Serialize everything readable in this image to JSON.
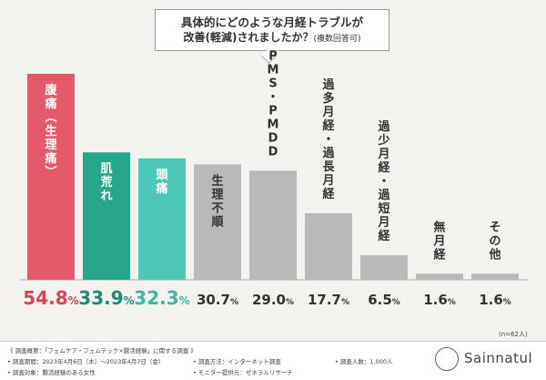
{
  "title": {
    "line1": "具体的にどのような月経トラブルが",
    "line2_main": "改善(軽減)されましたか？",
    "line2_sub": "(複数回答可)"
  },
  "chart_data": {
    "type": "bar",
    "categories": [
      "腹痛(生理痛)",
      "肌荒れ",
      "頭痛",
      "生理不順",
      "PMS・PMDD",
      "過多月経・過長月経",
      "過少月経・過短月経",
      "無月経",
      "その他"
    ],
    "values": [
      54.8,
      33.9,
      32.3,
      30.7,
      29.0,
      17.7,
      6.5,
      1.6,
      1.6
    ],
    "value_labels": [
      "54.8%",
      "33.9%",
      "32.3%",
      "30.7%",
      "29.0%",
      "17.7%",
      "6.5%",
      "1.6%",
      "1.6%"
    ],
    "colors": [
      "#e55a6b",
      "#27a68c",
      "#4fc7b8",
      "#b9b9b9",
      "#b9b9b9",
      "#b9b9b9",
      "#b9b9b9",
      "#b9b9b9",
      "#b9b9b9"
    ],
    "label_colors": [
      "#d64356",
      "#1f8a74",
      "#3ab5a6",
      "#333333",
      "#333333",
      "#333333",
      "#333333",
      "#333333",
      "#333333"
    ],
    "ylim": [
      0,
      60
    ],
    "grid": false,
    "sample_note": "(n=62人)"
  },
  "footer": {
    "overview": "《 調査概要：「フェムケア・フェムテック×腸活経験」に関する調査 》",
    "period": "• 調査期間：2023年4月6日（木）～2023年4月7日（金）",
    "target": "• 調査対象：腸活経験のある女性",
    "method": "• 調査方法：インターネット調査",
    "provider": "• モニター提供元：ゼネラルリサーチ",
    "count": "• 調査人数：1,000人",
    "brand": "Sainnatul"
  }
}
